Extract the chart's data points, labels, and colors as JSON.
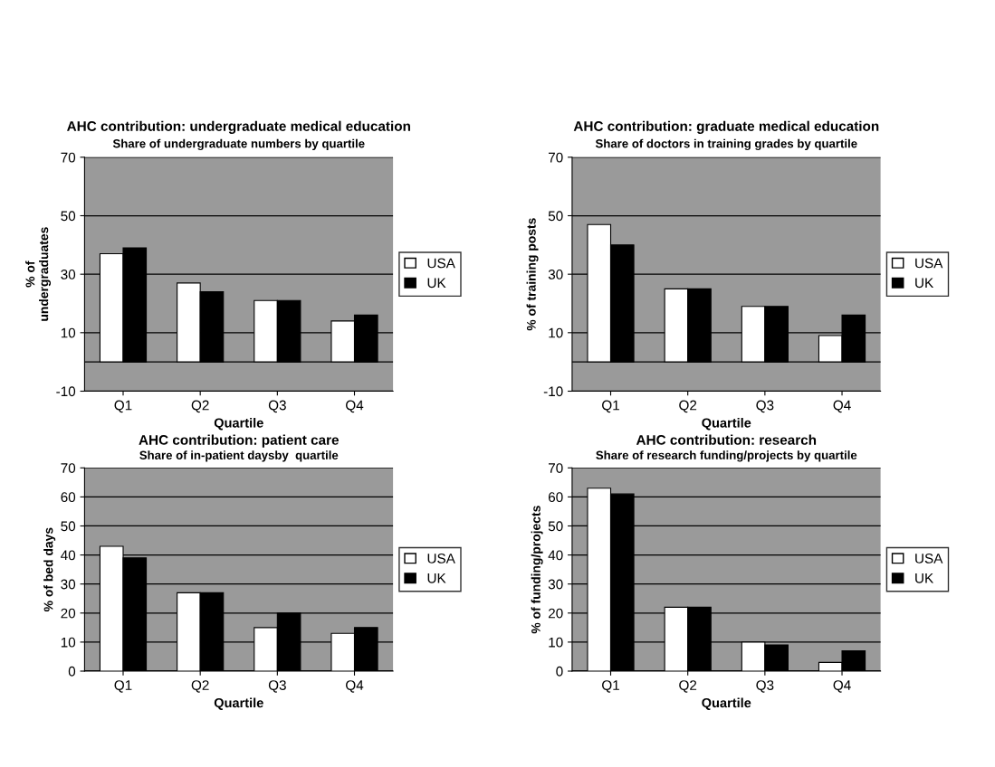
{
  "chart_data": [
    {
      "type": "bar",
      "title": "AHC contribution: undergraduate medical education",
      "subtitle": "Share of undergraduate numbers by quartile",
      "xlabel": "Quartile",
      "ylabel": "% of\nundergraduates",
      "categories": [
        "Q1",
        "Q2",
        "Q3",
        "Q4"
      ],
      "series": [
        {
          "name": "USA",
          "color": "#ffffff",
          "values": [
            37,
            27,
            21,
            14
          ]
        },
        {
          "name": "UK",
          "color": "#000000",
          "values": [
            39,
            24,
            21,
            16
          ]
        }
      ],
      "ylim": [
        -10,
        70
      ],
      "yticks": [
        -10,
        10,
        30,
        50,
        70
      ],
      "grid": "y",
      "legend": "right"
    },
    {
      "type": "bar",
      "title": "AHC contribution: graduate medical education",
      "subtitle": "Share of doctors in training grades by quartile",
      "xlabel": "Quartile",
      "ylabel": "% of training posts",
      "categories": [
        "Q1",
        "Q2",
        "Q3",
        "Q4"
      ],
      "series": [
        {
          "name": "USA",
          "color": "#ffffff",
          "values": [
            47,
            25,
            19,
            9
          ]
        },
        {
          "name": "UK",
          "color": "#000000",
          "values": [
            40,
            25,
            19,
            16
          ]
        }
      ],
      "ylim": [
        -10,
        70
      ],
      "yticks": [
        -10,
        10,
        30,
        50,
        70
      ],
      "grid": "y",
      "legend": "right"
    },
    {
      "type": "bar",
      "title": "AHC contribution: patient care",
      "subtitle": "Share of in-patient daysby  quartile",
      "xlabel": "Quartile",
      "ylabel": "% of bed days",
      "categories": [
        "Q1",
        "Q2",
        "Q3",
        "Q4"
      ],
      "series": [
        {
          "name": "USA",
          "color": "#ffffff",
          "values": [
            43,
            27,
            15,
            13
          ]
        },
        {
          "name": "UK",
          "color": "#000000",
          "values": [
            39,
            27,
            20,
            15
          ]
        }
      ],
      "ylim": [
        0,
        70
      ],
      "yticks": [
        0,
        10,
        20,
        30,
        40,
        50,
        60,
        70
      ],
      "grid": "y",
      "legend": "right"
    },
    {
      "type": "bar",
      "title": "AHC contribution: research",
      "subtitle": "Share of research funding/projects by quartile",
      "xlabel": "Quartile",
      "ylabel": "% of funding/projects",
      "categories": [
        "Q1",
        "Q2",
        "Q3",
        "Q4"
      ],
      "series": [
        {
          "name": "USA",
          "color": "#ffffff",
          "values": [
            63,
            22,
            10,
            3
          ]
        },
        {
          "name": "UK",
          "color": "#000000",
          "values": [
            61,
            22,
            9,
            7
          ]
        }
      ],
      "ylim": [
        0,
        70
      ],
      "yticks": [
        0,
        10,
        20,
        30,
        40,
        50,
        60,
        70
      ],
      "grid": "y",
      "legend": "right"
    }
  ]
}
